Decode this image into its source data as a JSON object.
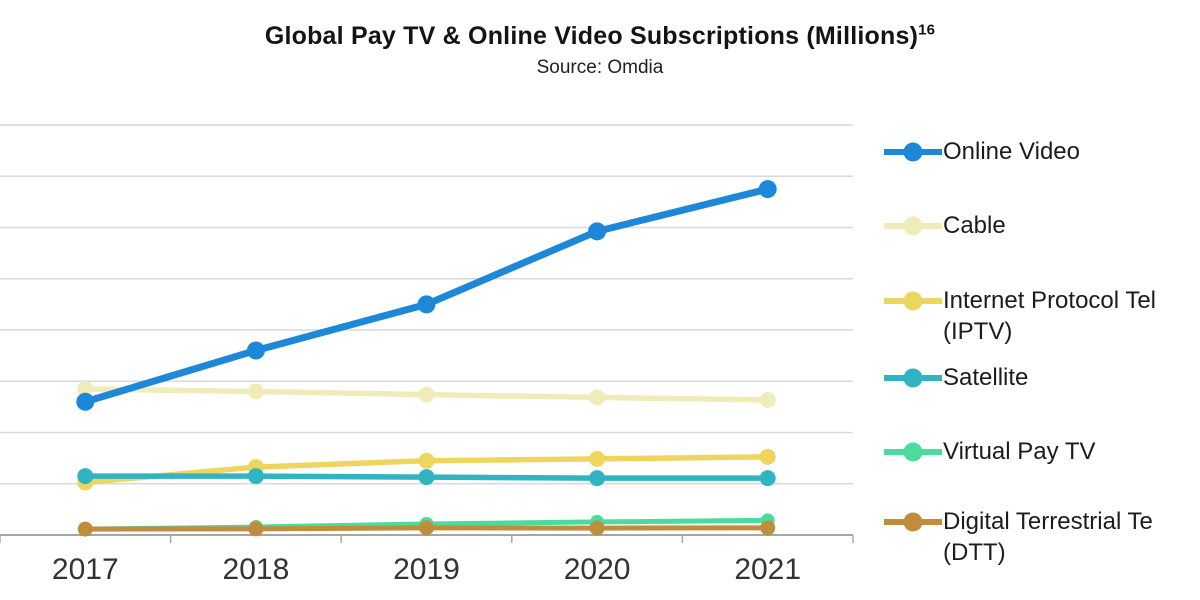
{
  "title": {
    "text": "Global Pay TV & Online Video Subscriptions (Millions)",
    "superscript": "16"
  },
  "subtitle": "Source: Omdia",
  "legend": {
    "items": [
      {
        "id": "online-video",
        "color": "#1e88d8",
        "lines": [
          "Online Video"
        ]
      },
      {
        "id": "cable",
        "color": "#f0ecba",
        "lines": [
          "Cable"
        ]
      },
      {
        "id": "iptv",
        "color": "#eed55e",
        "lines": [
          "Internet Protocol Tel",
          "(IPTV)"
        ]
      },
      {
        "id": "satellite",
        "color": "#30b4c1",
        "lines": [
          "Satellite"
        ]
      },
      {
        "id": "virtual-pay-tv",
        "color": "#4bdb9d",
        "lines": [
          "Virtual Pay TV"
        ]
      },
      {
        "id": "dtt",
        "color": "#bf8e3d",
        "lines": [
          "Digital Terrestrial Te",
          "(DTT)"
        ]
      }
    ]
  },
  "chart_data": {
    "type": "line",
    "title": "Global Pay TV & Online Video Subscriptions (Millions)",
    "subtitle": "Source: Omdia",
    "x": [
      2017,
      2018,
      2019,
      2020,
      2021
    ],
    "x_tick_labels": [
      "2017",
      "2018",
      "2019",
      "2020",
      "2021"
    ],
    "xlabel": "",
    "ylabel": "",
    "ylim": [
      0,
      1600
    ],
    "y_gridline_step": 200,
    "y_tick_labels_visible": false,
    "units": "millions (estimated from unlabeled gridlines; y-axis labels cropped out of image)",
    "grid": true,
    "legend_position": "right",
    "axis_color": "#a6a6a6",
    "gridline_color": "#d9d9d9",
    "tick_label_color": "#333333",
    "series": [
      {
        "id": "online-video",
        "name": "Online Video",
        "color": "#1e88d8",
        "values": [
          520,
          720,
          900,
          1185,
          1350
        ],
        "line_width": 7,
        "marker_radius": 9
      },
      {
        "id": "cable",
        "name": "Cable",
        "color": "#f0ecba",
        "values": [
          570,
          560,
          548,
          537,
          527
        ],
        "line_width": 5.5,
        "marker_radius": 8
      },
      {
        "id": "iptv",
        "name": "Internet Protocol Tel (IPTV)",
        "color": "#eed55e",
        "values": [
          205,
          265,
          290,
          297,
          305
        ],
        "line_width": 5.5,
        "marker_radius": 8
      },
      {
        "id": "satellite",
        "name": "Satellite",
        "color": "#30b4c1",
        "values": [
          230,
          230,
          226,
          222,
          222
        ],
        "line_width": 5.5,
        "marker_radius": 8
      },
      {
        "id": "virtual-pay-tv",
        "name": "Virtual Pay TV",
        "color": "#4bdb9d",
        "values": [
          23,
          31,
          43,
          51,
          57
        ],
        "line_width": 5,
        "marker_radius": 7
      },
      {
        "id": "dtt",
        "name": "Digital Terrestrial Te (DTT)",
        "color": "#bf8e3d",
        "values": [
          23,
          24,
          28,
          27,
          28
        ],
        "line_width": 5,
        "marker_radius": 7.5
      }
    ],
    "draw_order": [
      "cable",
      "iptv",
      "satellite",
      "virtual-pay-tv",
      "dtt",
      "online-video"
    ]
  }
}
